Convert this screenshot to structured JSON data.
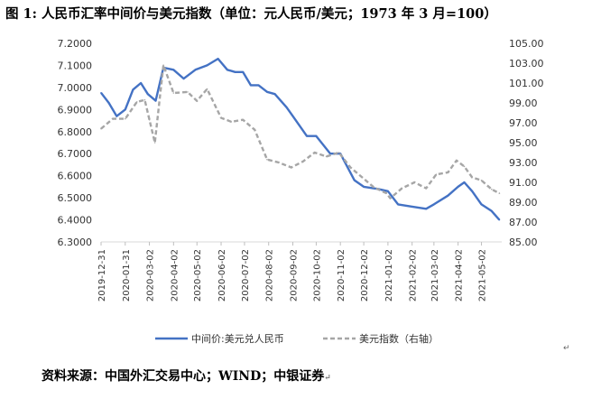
{
  "figure": {
    "title": "图 1: 人民币汇率中间价与美元指数（单位：元人民币/美元；1973 年 3 月=100）",
    "source": "资料来源：中国外汇交易中心；WIND；中银证券"
  },
  "colors": {
    "cny": "#4472C4",
    "dxy": "#A6A6A6"
  },
  "chart_data": {
    "type": "line",
    "x_tick_labels": [
      "2019-12-31",
      "2020-01-31",
      "2020-03-02",
      "2020-04-02",
      "2020-05-02",
      "2020-06-02",
      "2020-07-02",
      "2020-08-02",
      "2020-09-02",
      "2020-10-02",
      "2020-11-02",
      "2020-12-02",
      "2021-01-02",
      "2021-02-02",
      "2021-03-02",
      "2021-04-02",
      "2021-05-02"
    ],
    "y_left": {
      "lim": [
        6.3,
        7.2
      ],
      "ticks": [
        "6.3000",
        "6.4000",
        "6.5000",
        "6.6000",
        "6.7000",
        "6.8000",
        "6.9000",
        "7.0000",
        "7.1000",
        "7.2000"
      ]
    },
    "y_right": {
      "lim": [
        85,
        105
      ],
      "ticks": [
        "85.00",
        "87.00",
        "89.00",
        "91.00",
        "93.00",
        "95.00",
        "97.00",
        "99.00",
        "101.00",
        "103.00",
        "105.00"
      ]
    },
    "series": [
      {
        "name": "中间价:美元兑人民币",
        "axis": "left",
        "style": "solid",
        "points": [
          [
            "2019-12-31",
            6.976
          ],
          [
            "2020-01-10",
            6.93
          ],
          [
            "2020-01-20",
            6.87
          ],
          [
            "2020-01-31",
            6.9
          ],
          [
            "2020-02-10",
            6.99
          ],
          [
            "2020-02-20",
            7.02
          ],
          [
            "2020-02-29",
            6.97
          ],
          [
            "2020-03-10",
            6.94
          ],
          [
            "2020-03-20",
            7.09
          ],
          [
            "2020-04-02",
            7.08
          ],
          [
            "2020-04-15",
            7.04
          ],
          [
            "2020-04-30",
            7.08
          ],
          [
            "2020-05-15",
            7.1
          ],
          [
            "2020-05-29",
            7.13
          ],
          [
            "2020-06-10",
            7.08
          ],
          [
            "2020-06-20",
            7.07
          ],
          [
            "2020-06-30",
            7.07
          ],
          [
            "2020-07-10",
            7.01
          ],
          [
            "2020-07-20",
            7.01
          ],
          [
            "2020-07-31",
            6.98
          ],
          [
            "2020-08-10",
            6.97
          ],
          [
            "2020-08-25",
            6.91
          ],
          [
            "2020-09-10",
            6.83
          ],
          [
            "2020-09-20",
            6.78
          ],
          [
            "2020-10-02",
            6.78
          ],
          [
            "2020-10-20",
            6.7
          ],
          [
            "2020-11-02",
            6.7
          ],
          [
            "2020-11-20",
            6.58
          ],
          [
            "2020-12-02",
            6.55
          ],
          [
            "2020-12-20",
            6.54
          ],
          [
            "2021-01-02",
            6.53
          ],
          [
            "2021-01-15",
            6.47
          ],
          [
            "2021-02-02",
            6.46
          ],
          [
            "2021-02-20",
            6.45
          ],
          [
            "2021-03-02",
            6.47
          ],
          [
            "2021-03-20",
            6.51
          ],
          [
            "2021-04-02",
            6.55
          ],
          [
            "2021-04-10",
            6.57
          ],
          [
            "2021-04-20",
            6.53
          ],
          [
            "2021-05-02",
            6.47
          ],
          [
            "2021-05-15",
            6.44
          ],
          [
            "2021-05-25",
            6.4
          ]
        ]
      },
      {
        "name": "美元指数（右轴）",
        "axis": "right",
        "style": "dashed",
        "points": [
          [
            "2019-12-31",
            96.4
          ],
          [
            "2020-01-15",
            97.4
          ],
          [
            "2020-01-31",
            97.4
          ],
          [
            "2020-02-15",
            99.1
          ],
          [
            "2020-02-25",
            99.3
          ],
          [
            "2020-03-02",
            97.3
          ],
          [
            "2020-03-09",
            95.0
          ],
          [
            "2020-03-20",
            102.8
          ],
          [
            "2020-04-02",
            100.0
          ],
          [
            "2020-04-20",
            100.1
          ],
          [
            "2020-05-02",
            99.2
          ],
          [
            "2020-05-15",
            100.4
          ],
          [
            "2020-06-02",
            97.5
          ],
          [
            "2020-06-15",
            97.1
          ],
          [
            "2020-06-30",
            97.3
          ],
          [
            "2020-07-15",
            96.3
          ],
          [
            "2020-07-31",
            93.3
          ],
          [
            "2020-08-15",
            93.0
          ],
          [
            "2020-08-31",
            92.5
          ],
          [
            "2020-09-15",
            93.1
          ],
          [
            "2020-09-30",
            94.0
          ],
          [
            "2020-10-15",
            93.6
          ],
          [
            "2020-10-31",
            94.0
          ],
          [
            "2020-11-15",
            92.5
          ],
          [
            "2020-11-30",
            91.5
          ],
          [
            "2020-12-15",
            90.5
          ],
          [
            "2020-12-31",
            89.9
          ],
          [
            "2021-01-05",
            89.4
          ],
          [
            "2021-01-20",
            90.4
          ],
          [
            "2021-02-05",
            91.0
          ],
          [
            "2021-02-20",
            90.4
          ],
          [
            "2021-03-05",
            91.8
          ],
          [
            "2021-03-20",
            92.0
          ],
          [
            "2021-03-31",
            93.2
          ],
          [
            "2021-04-10",
            92.6
          ],
          [
            "2021-04-20",
            91.5
          ],
          [
            "2021-05-02",
            91.2
          ],
          [
            "2021-05-15",
            90.3
          ],
          [
            "2021-05-25",
            89.9
          ]
        ]
      }
    ]
  }
}
